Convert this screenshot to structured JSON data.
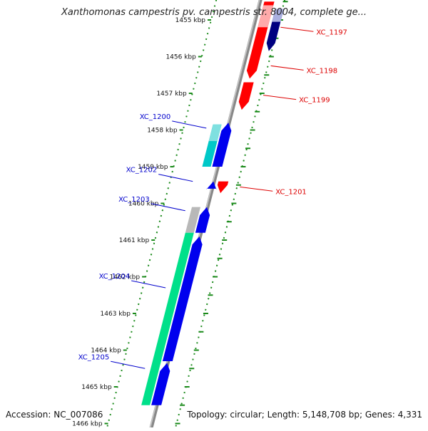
{
  "title": "Xanthomonas campestris pv. campestris str. 8004, complete ge...",
  "footer": {
    "accession": "Accession: NC_007086",
    "summary": "Topology: circular; Length: 5,148,708 bp; Genes: 4,331"
  },
  "ticks": [
    {
      "label": "1455 kbp",
      "pos": 0
    },
    {
      "label": "1456 kbp",
      "pos": 1
    },
    {
      "label": "1457 kbp",
      "pos": 2
    },
    {
      "label": "1458 kbp",
      "pos": 3
    },
    {
      "label": "1459 kbp",
      "pos": 4
    },
    {
      "label": "1460 kbp",
      "pos": 5
    },
    {
      "label": "1461 kbp",
      "pos": 6
    },
    {
      "label": "1462 kbp",
      "pos": 7
    },
    {
      "label": "1463 kbp",
      "pos": 8
    },
    {
      "label": "1464 kbp",
      "pos": 9
    },
    {
      "label": "1465 kbp",
      "pos": 10
    },
    {
      "label": "1466 kbp",
      "pos": 11
    }
  ],
  "gene_labels": [
    {
      "name": "XC_1197",
      "strand": "forward",
      "color": "#dd0000",
      "pos": 0.2
    },
    {
      "name": "XC_1198",
      "strand": "forward",
      "color": "#dd0000",
      "pos": 1.25
    },
    {
      "name": "XC_1199",
      "strand": "forward",
      "color": "#dd0000",
      "pos": 2.05
    },
    {
      "name": "XC_1200",
      "strand": "reverse",
      "color": "#0000cc",
      "pos": 2.95
    },
    {
      "name": "XC_1201",
      "strand": "forward",
      "color": "#dd0000",
      "pos": 4.55
    },
    {
      "name": "XC_1202",
      "strand": "reverse",
      "color": "#0000cc",
      "pos": 4.4
    },
    {
      "name": "XC_1203",
      "strand": "reverse",
      "color": "#0000cc",
      "pos": 5.2
    },
    {
      "name": "XC_1204",
      "strand": "reverse",
      "color": "#0000cc",
      "pos": 7.3
    },
    {
      "name": "XC_1205",
      "strand": "reverse",
      "color": "#0000cc",
      "pos": 9.5
    }
  ],
  "colors": {
    "forward_cds": "#ff0000",
    "reverse_cds": "#0000ee",
    "dark_cds": "#000080",
    "teal_feature": "#00c8c8",
    "green_feature": "#00e08a",
    "grey_feature": "#b8b8b8",
    "backbone": "#888888",
    "dots": "#1a8a1a"
  }
}
